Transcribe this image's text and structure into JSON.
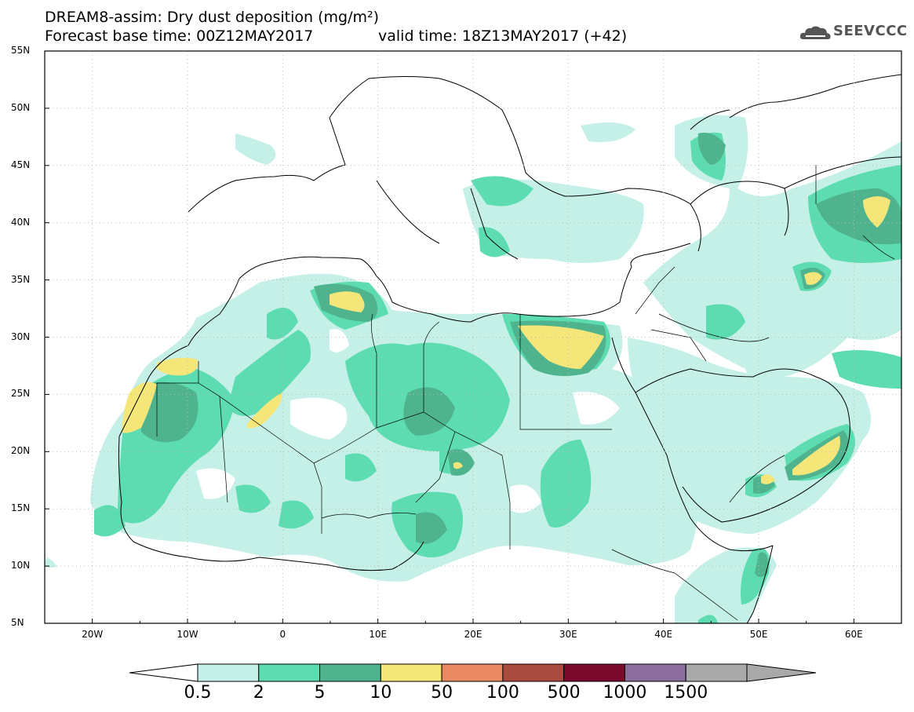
{
  "header": {
    "title": "DREAM8-assim: Dry dust deposition (mg/m²)",
    "base_time": "Forecast base time: 00Z12MAY2017",
    "valid_time": "valid time: 18Z13MAY2017 (+42)"
  },
  "logo": {
    "text": "SEEVCCC",
    "icon": "cloud-icon"
  },
  "map": {
    "lon_labels": [
      "20W",
      "10W",
      "0",
      "10E",
      "20E",
      "30E",
      "40E",
      "50E",
      "60E"
    ],
    "lat_labels": [
      "55N",
      "50N",
      "45N",
      "40N",
      "35N",
      "30N",
      "25N",
      "20N",
      "15N",
      "10N",
      "5N"
    ]
  },
  "colorbar": {
    "labels": [
      "0.5",
      "2",
      "5",
      "10",
      "50",
      "100",
      "500",
      "1000",
      "1500"
    ],
    "colors": [
      "#c4f0e8",
      "#5cdcb0",
      "#4fb48e",
      "#f5e679",
      "#e98a64",
      "#a84b3e",
      "#7c0a2c",
      "#8b6d9e",
      "#a9a9a9"
    ]
  }
}
